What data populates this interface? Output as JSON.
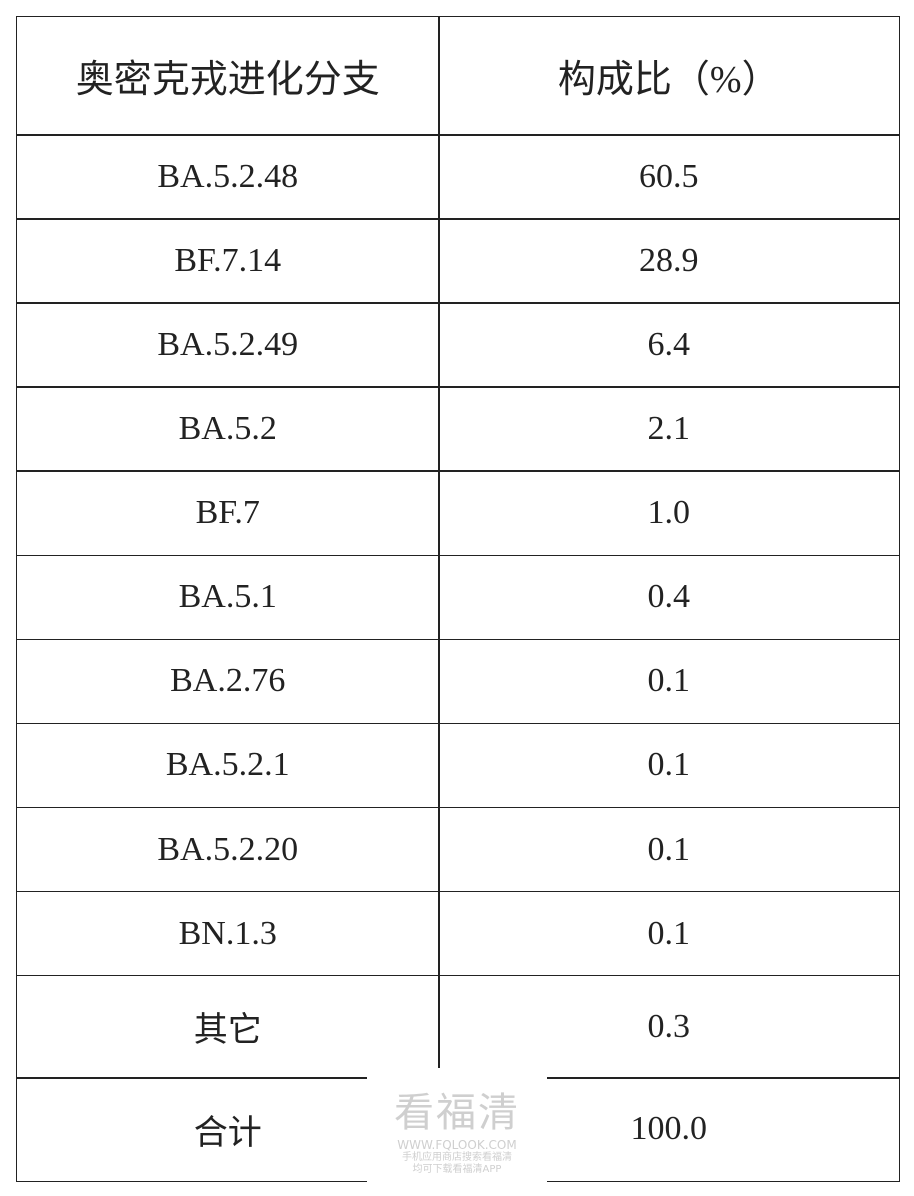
{
  "table": {
    "header": [
      "奥密克戎进化分支",
      "构成比（%）"
    ],
    "rows": [
      [
        "BA.5.2.48",
        "60.5"
      ],
      [
        "BF.7.14",
        "28.9"
      ],
      [
        "BA.5.2.49",
        "6.4"
      ],
      [
        "BA.5.2",
        "2.1"
      ],
      [
        "BF.7",
        "1.0"
      ],
      [
        "BA.5.1",
        "0.4"
      ],
      [
        "BA.2.76",
        "0.1"
      ],
      [
        "BA.5.2.1",
        "0.1"
      ],
      [
        "BA.5.2.20",
        "0.1"
      ],
      [
        "BN.1.3",
        "0.1"
      ],
      [
        "其它",
        "0.3"
      ],
      [
        "合计",
        "100.0"
      ]
    ]
  },
  "watermark": {
    "logo": "看福清",
    "url": "WWW.FQLOOK.COM",
    "note": [
      "手机应用商店搜索看福清",
      "均可下载看福清APP"
    ]
  }
}
